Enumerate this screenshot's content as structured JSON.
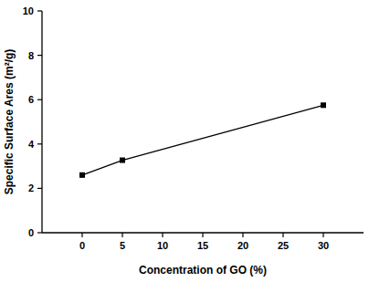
{
  "chart_data": {
    "type": "line",
    "x_label": "Concentration of GO (%)",
    "y_label": "Specific Surface Ares (m²/g)",
    "x": [
      0,
      5,
      30
    ],
    "values": [
      2.6,
      3.27,
      5.75
    ],
    "color": "#000000",
    "marker": "square",
    "xlim": [
      -5,
      35
    ],
    "xticks": [
      0,
      5,
      10,
      15,
      20,
      25,
      30
    ],
    "ylim": [
      0,
      10
    ],
    "yticks": [
      0,
      2,
      4,
      6,
      8,
      10
    ],
    "grid": false
  }
}
